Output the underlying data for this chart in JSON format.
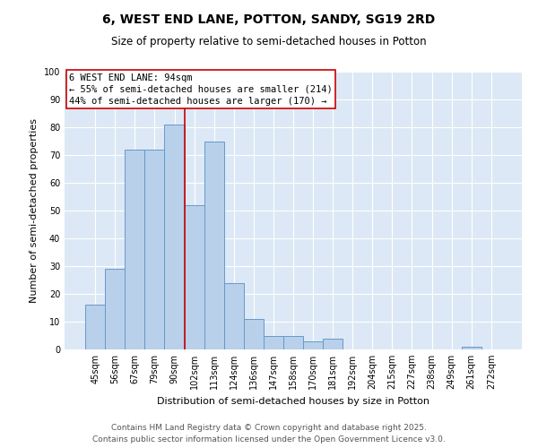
{
  "title_line1": "6, WEST END LANE, POTTON, SANDY, SG19 2RD",
  "title_line2": "Size of property relative to semi-detached houses in Potton",
  "xlabel": "Distribution of semi-detached houses by size in Potton",
  "ylabel": "Number of semi-detached properties",
  "categories": [
    "45sqm",
    "56sqm",
    "67sqm",
    "79sqm",
    "90sqm",
    "102sqm",
    "113sqm",
    "124sqm",
    "136sqm",
    "147sqm",
    "158sqm",
    "170sqm",
    "181sqm",
    "192sqm",
    "204sqm",
    "215sqm",
    "227sqm",
    "238sqm",
    "249sqm",
    "261sqm",
    "272sqm"
  ],
  "values": [
    16,
    29,
    72,
    72,
    81,
    52,
    75,
    24,
    11,
    5,
    5,
    3,
    4,
    0,
    0,
    0,
    0,
    0,
    0,
    1,
    0
  ],
  "bar_color": "#b8d0ea",
  "bar_edge_color": "#6699cc",
  "vline_color": "#cc0000",
  "vline_x_idx": 4,
  "annotation_box_text": "6 WEST END LANE: 94sqm\n← 55% of semi-detached houses are smaller (214)\n44% of semi-detached houses are larger (170) →",
  "annotation_box_color": "#cc0000",
  "ylim": [
    0,
    100
  ],
  "yticks": [
    0,
    10,
    20,
    30,
    40,
    50,
    60,
    70,
    80,
    90,
    100
  ],
  "background_color": "#dce8f5",
  "grid_color": "#ffffff",
  "footer_text": "Contains HM Land Registry data © Crown copyright and database right 2025.\nContains public sector information licensed under the Open Government Licence v3.0.",
  "title_fontsize": 10,
  "subtitle_fontsize": 8.5,
  "annotation_fontsize": 7.5,
  "axis_label_fontsize": 8,
  "tick_fontsize": 7,
  "footer_fontsize": 6.5
}
